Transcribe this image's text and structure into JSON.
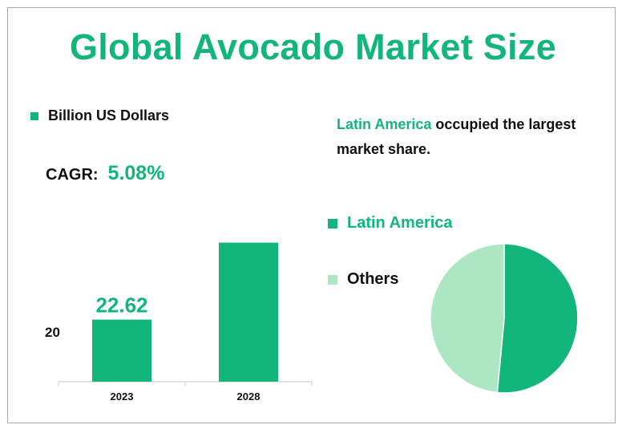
{
  "title": "Global Avocado Market Size",
  "unit_legend": "Billion US Dollars",
  "cagr": {
    "label": "CAGR:",
    "value": "5.08%"
  },
  "y_axis_tick": "20",
  "description": {
    "highlight": "Latin America",
    "text": " occupied the largest market share."
  },
  "colors": {
    "accent": "#12b57a",
    "others": "#ade6c3"
  },
  "chart_data": [
    {
      "type": "bar",
      "title": "Global Avocado Market Size",
      "ylabel": "Billion US Dollars",
      "categories": [
        "2023",
        "2028"
      ],
      "values": [
        22.62,
        28.97
      ],
      "data_labels": [
        "22.62",
        ""
      ],
      "yticks": [
        20
      ],
      "ylim": [
        17.5,
        30
      ]
    },
    {
      "type": "pie",
      "categories": [
        "Latin America",
        "Others"
      ],
      "values": [
        51.5,
        48.5
      ],
      "colors": [
        "#12b57a",
        "#ade6c3"
      ],
      "legend_position": "left"
    }
  ]
}
